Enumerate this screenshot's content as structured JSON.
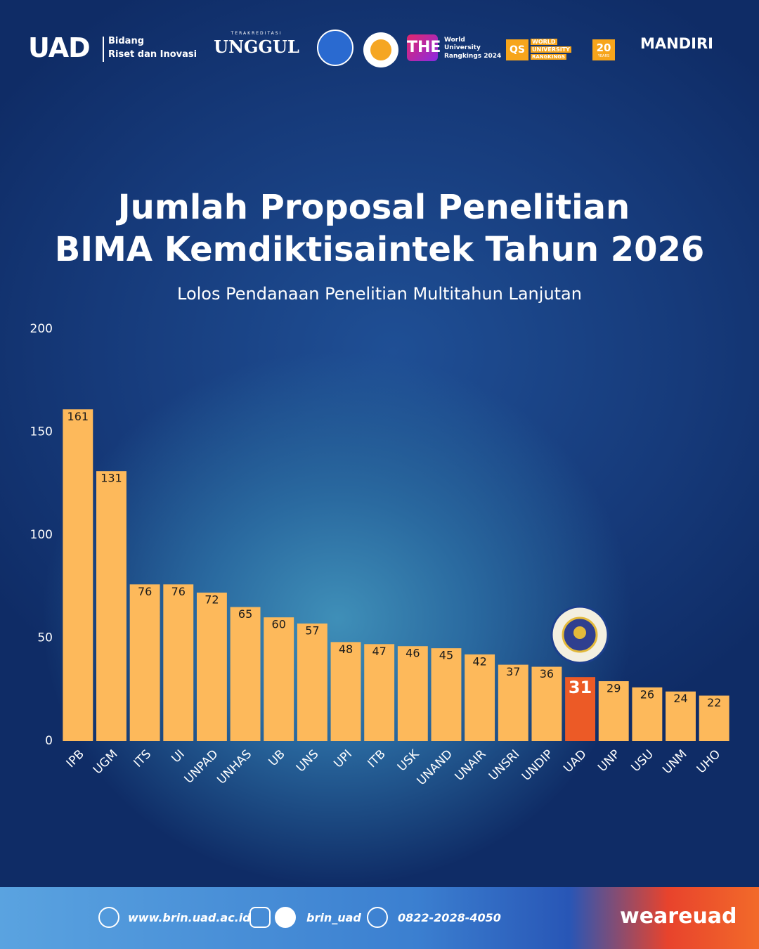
{
  "header": {
    "brand": "UAD",
    "unit_line1": "Bidang",
    "unit_line2": "Riset dan Inovasi",
    "accreditation_caption": "TERAKREDITASI",
    "accreditation": "UNGGUL",
    "the_logo": "THE",
    "the_text": [
      "World",
      "University",
      "Rangkings 2024"
    ],
    "qs_logo": "QS",
    "qs_text": [
      "WORLD",
      "UNIVERSITY",
      "RANGKINGS"
    ],
    "qs_years": "20",
    "qs_years_caption": "YEARS",
    "mandiri": "MANDIRI"
  },
  "chart_data": {
    "type": "bar",
    "title": [
      "Jumlah Proposal Penelitian",
      "BIMA Kemdiktisaintek Tahun 2026"
    ],
    "subtitle": "Lolos Pendanaan Penelitian Multitahun Lanjutan",
    "categories": [
      "IPB",
      "UGM",
      "ITS",
      "UI",
      "UNPAD",
      "UNHAS",
      "UB",
      "UNS",
      "UPI",
      "ITB",
      "USK",
      "UNAND",
      "UNAIR",
      "UNSRI",
      "UNDIP",
      "UAD",
      "UNP",
      "USU",
      "UNM",
      "UHO"
    ],
    "values": [
      161,
      131,
      76,
      76,
      72,
      65,
      60,
      57,
      48,
      47,
      46,
      45,
      42,
      37,
      36,
      31,
      29,
      26,
      24,
      22
    ],
    "colors": [
      "#fdb95b",
      "#fdb95b",
      "#fdb95b",
      "#fdb95b",
      "#fdb95b",
      "#fdb95b",
      "#fdb95b",
      "#fdb95b",
      "#fdb95b",
      "#fdb95b",
      "#fdb95b",
      "#fdb95b",
      "#fdb95b",
      "#fdb95b",
      "#fdb95b",
      "#ec5a26",
      "#fdb95b",
      "#fdb95b",
      "#fdb95b",
      "#fdb95b"
    ],
    "ylim": [
      0,
      200
    ],
    "yticks": [
      0,
      50,
      100,
      150,
      200
    ],
    "grid": false
  },
  "footer": {
    "website": "www.brin.uad.ac.id",
    "social": "brin_uad",
    "phone": "0822-2028-4050",
    "tagline": "weareuad"
  }
}
